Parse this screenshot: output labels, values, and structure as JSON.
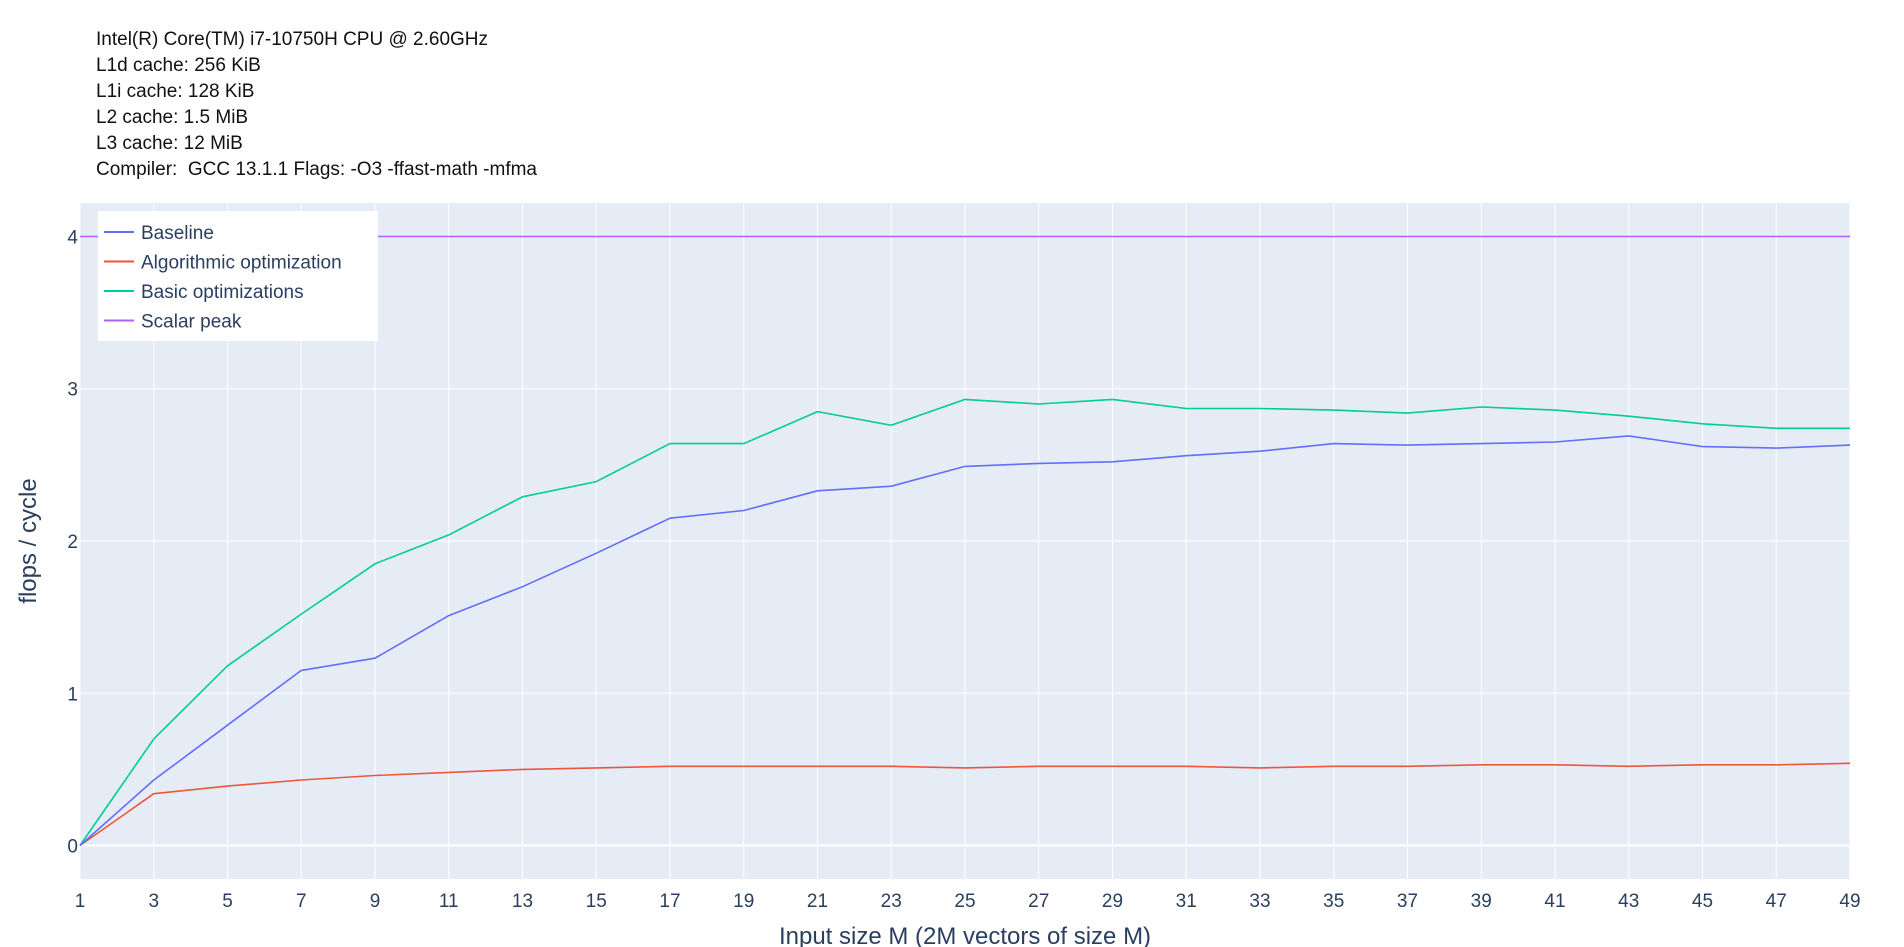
{
  "header": {
    "lines": [
      "Intel(R) Core(TM) i7-10750H CPU @ 2.60GHz",
      "L1d cache: 256 KiB",
      "L1i cache: 128 KiB",
      "L2 cache: 1.5 MiB",
      "L3 cache: 12 MiB",
      "Compiler:  GCC 13.1.1 Flags: -O3 -ffast-math -mfma"
    ]
  },
  "colors": {
    "plot_bg": "#e5ecf6",
    "grid": "#ffffff",
    "text": "#2a3f5f",
    "legend_bg": "#ffffff"
  },
  "chart_data": {
    "type": "line",
    "title": "",
    "xlabel": "Input size M (2M vectors of size M)",
    "ylabel": "flops / cycle",
    "xlim": [
      1,
      49
    ],
    "ylim": [
      -0.22,
      4.22
    ],
    "grid": true,
    "legend_placement": "top-left",
    "x": [
      1,
      3,
      5,
      7,
      9,
      11,
      13,
      15,
      17,
      19,
      21,
      23,
      25,
      27,
      29,
      31,
      33,
      35,
      37,
      39,
      41,
      43,
      45,
      47,
      49
    ],
    "xticks": [
      1,
      3,
      5,
      7,
      9,
      11,
      13,
      15,
      17,
      19,
      21,
      23,
      25,
      27,
      29,
      31,
      33,
      35,
      37,
      39,
      41,
      43,
      45,
      47,
      49
    ],
    "yticks": [
      0,
      1,
      2,
      3,
      4
    ],
    "series": [
      {
        "name": "Baseline",
        "color": "#636efa",
        "values": [
          0,
          0.43,
          0.79,
          1.15,
          1.23,
          1.51,
          1.7,
          1.92,
          2.15,
          2.2,
          2.33,
          2.36,
          2.49,
          2.51,
          2.52,
          2.56,
          2.59,
          2.64,
          2.63,
          2.64,
          2.65,
          2.69,
          2.62,
          2.61,
          2.63
        ]
      },
      {
        "name": "Algorithmic optimization",
        "color": "#ef553b",
        "values": [
          0,
          0.34,
          0.39,
          0.43,
          0.46,
          0.48,
          0.5,
          0.51,
          0.52,
          0.52,
          0.52,
          0.52,
          0.51,
          0.52,
          0.52,
          0.52,
          0.51,
          0.52,
          0.52,
          0.53,
          0.53,
          0.52,
          0.53,
          0.53,
          0.54
        ]
      },
      {
        "name": "Basic optimizations",
        "color": "#00cc96",
        "values": [
          0,
          0.7,
          1.18,
          1.52,
          1.85,
          2.04,
          2.29,
          2.39,
          2.64,
          2.64,
          2.85,
          2.76,
          2.93,
          2.9,
          2.93,
          2.87,
          2.87,
          2.86,
          2.84,
          2.88,
          2.86,
          2.82,
          2.77,
          2.74,
          2.74
        ]
      },
      {
        "name": "Scalar peak",
        "color": "#ab63fa",
        "values": [
          4,
          4,
          4,
          4,
          4,
          4,
          4,
          4,
          4,
          4,
          4,
          4,
          4,
          4,
          4,
          4,
          4,
          4,
          4,
          4,
          4,
          4,
          4,
          4,
          4
        ]
      }
    ]
  }
}
